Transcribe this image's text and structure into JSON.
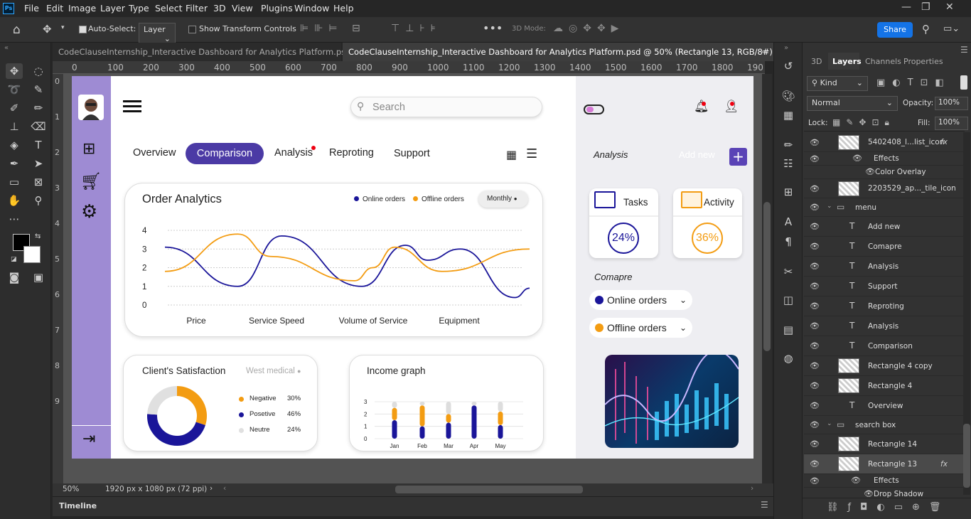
{
  "app": {
    "logo": "Ps",
    "menus": [
      "File",
      "Edit",
      "Image",
      "Layer",
      "Type",
      "Select",
      "Filter",
      "3D",
      "View",
      "Plugins",
      "Window",
      "Help"
    ],
    "window_controls": [
      "minimize",
      "restore",
      "close"
    ]
  },
  "options": {
    "auto_select_label": "Auto-Select:",
    "auto_select_target": "Layer",
    "show_transform_label": "Show Transform Controls",
    "mode_3d_label": "3D Mode:",
    "share_label": "Share"
  },
  "tabs": [
    {
      "title": "CodeClauseInternship_Interactive Dashboard for Analytics Platform.psdc",
      "active": false
    },
    {
      "title": "CodeClauseInternship_Interactive Dashboard for Analytics Platform.psd @ 50% (Rectangle 13, RGB/8#)",
      "active": true
    }
  ],
  "ruler": {
    "h": [
      "0",
      "100",
      "200",
      "300",
      "400",
      "500",
      "600",
      "700",
      "800",
      "900",
      "1000",
      "1100",
      "1200",
      "1300",
      "1400",
      "1500",
      "1600",
      "1700",
      "1800",
      "190"
    ],
    "v": [
      "0",
      "1",
      "2",
      "3",
      "4",
      "5",
      "6",
      "7",
      "8",
      "9"
    ]
  },
  "status": {
    "zoom": "50%",
    "doc_info": "1920 px x 1080 px (72 ppi)"
  },
  "timeline_label": "Timeline",
  "panel": {
    "tabs": [
      "3D",
      "Layers",
      "Channels",
      "Properties"
    ],
    "active_tab": "Layers",
    "filter_label": "Kind",
    "blend_mode": "Normal",
    "opacity_label": "Opacity:",
    "opacity_value": "100%",
    "lock_label": "Lock:",
    "fill_label": "Fill:",
    "fill_value": "100%",
    "layers": [
      {
        "name": "5402408_l...list_icon",
        "type": "smart",
        "indent": 0,
        "fx": true
      },
      {
        "name": "Effects",
        "type": "effects",
        "indent": 1
      },
      {
        "name": "Color Overlay",
        "type": "effect",
        "indent": 2
      },
      {
        "name": "2203529_ap..._tile_icon",
        "type": "smart",
        "indent": 0
      },
      {
        "name": "menu",
        "type": "group",
        "indent": 0
      },
      {
        "name": "Add new",
        "type": "text",
        "indent": 1
      },
      {
        "name": "Comapre",
        "type": "text",
        "indent": 1
      },
      {
        "name": "Analysis",
        "type": "text",
        "indent": 1
      },
      {
        "name": "Support",
        "type": "text",
        "indent": 1
      },
      {
        "name": "Reproting",
        "type": "text",
        "indent": 1
      },
      {
        "name": "Analysis",
        "type": "text",
        "indent": 1
      },
      {
        "name": "Comparison",
        "type": "text",
        "indent": 1
      },
      {
        "name": "Rectangle 4 copy",
        "type": "smart",
        "indent": 1
      },
      {
        "name": "Rectangle 4",
        "type": "smart",
        "indent": 1
      },
      {
        "name": "Overview",
        "type": "text",
        "indent": 1
      },
      {
        "name": "search box",
        "type": "group",
        "indent": 0
      },
      {
        "name": "Rectangle 14",
        "type": "smart",
        "indent": 1
      },
      {
        "name": "Rectangle 13",
        "type": "smart",
        "indent": 1,
        "fx": true,
        "selected": true
      },
      {
        "name": "Effects",
        "type": "effects",
        "indent": 2
      },
      {
        "name": "Drop Shadow",
        "type": "effect",
        "indent": 3
      }
    ]
  },
  "dashboard": {
    "search_placeholder": "Search",
    "nav": [
      "Overview",
      "Comparison",
      "Analysis",
      "Reproting",
      "Support"
    ],
    "active_nav": "Comparison",
    "order_card": {
      "title": "Order Analytics",
      "legend": [
        "Online orders",
        "Offline orders"
      ],
      "period": "Monthly"
    },
    "satisfaction": {
      "title": "Client's Satisfaction",
      "filter": "West medical",
      "items": [
        {
          "label": "Negative",
          "value": "30%",
          "color": "#f39c12"
        },
        {
          "label": "Posetive",
          "value": "46%",
          "color": "#1a1599"
        },
        {
          "label": "Neutre",
          "value": "24%",
          "color": "#e0e0e0"
        }
      ]
    },
    "income": {
      "title": "Income graph"
    },
    "right": {
      "analysis_label": "Analysis",
      "add_new_label": "Add new",
      "tasks_label": "Tasks",
      "tasks_value": "24%",
      "activity_label": "Activity",
      "activity_value": "36%",
      "compare_label": "Comapre",
      "compare_items": [
        "Online orders",
        "Offline orders"
      ]
    }
  },
  "chart_data": [
    {
      "type": "line",
      "title": "Order Analytics",
      "categories": [
        "Price",
        "Service Speed",
        "Volume of Service",
        "Equipment"
      ],
      "yticks": [
        "0",
        "1",
        "2",
        "3",
        "4"
      ],
      "ylim": [
        0,
        4
      ],
      "series": [
        {
          "name": "Online orders",
          "color": "#1a1599",
          "points": [
            [
              0,
              3.1
            ],
            [
              0.2,
              1.0
            ],
            [
              0.32,
              3.7
            ],
            [
              0.54,
              1.0
            ],
            [
              0.66,
              3.2
            ],
            [
              0.72,
              2.4
            ],
            [
              0.81,
              3.0
            ],
            [
              0.96,
              0.4
            ],
            [
              1,
              0.9
            ]
          ]
        },
        {
          "name": "Offline orders",
          "color": "#f39c12",
          "points": [
            [
              0,
              1.8
            ],
            [
              0.2,
              3.8
            ],
            [
              0.29,
              2.6
            ],
            [
              0.52,
              1.3
            ],
            [
              0.57,
              2.0
            ],
            [
              0.63,
              3.1
            ],
            [
              0.76,
              1.8
            ],
            [
              1,
              3.0
            ]
          ]
        }
      ]
    },
    {
      "type": "pie",
      "title": "Client's Satisfaction",
      "series": [
        {
          "name": "Negative",
          "value": 30,
          "color": "#f39c12"
        },
        {
          "name": "Posetive",
          "value": 46,
          "color": "#1a1599"
        },
        {
          "name": "Neutre",
          "value": 24,
          "color": "#e0e0e0"
        }
      ]
    },
    {
      "type": "bar",
      "title": "Income graph",
      "categories": [
        "Jan",
        "Feb",
        "Mar",
        "Apr",
        "May"
      ],
      "yticks": [
        "0",
        "1",
        "2",
        "3"
      ],
      "ylim": [
        0,
        3
      ],
      "series": [
        {
          "name": "",
          "color": "#1a1599",
          "values": [
            1.5,
            1.0,
            1.3,
            2.7,
            1.1
          ]
        },
        {
          "name": "",
          "color": "#f39c12",
          "values": [
            1.0,
            1.7,
            0.7,
            0,
            1.1
          ]
        },
        {
          "name": "",
          "color": "#dddddd",
          "values": [
            0.5,
            0.3,
            1.0,
            0.3,
            0.8
          ]
        }
      ]
    }
  ]
}
